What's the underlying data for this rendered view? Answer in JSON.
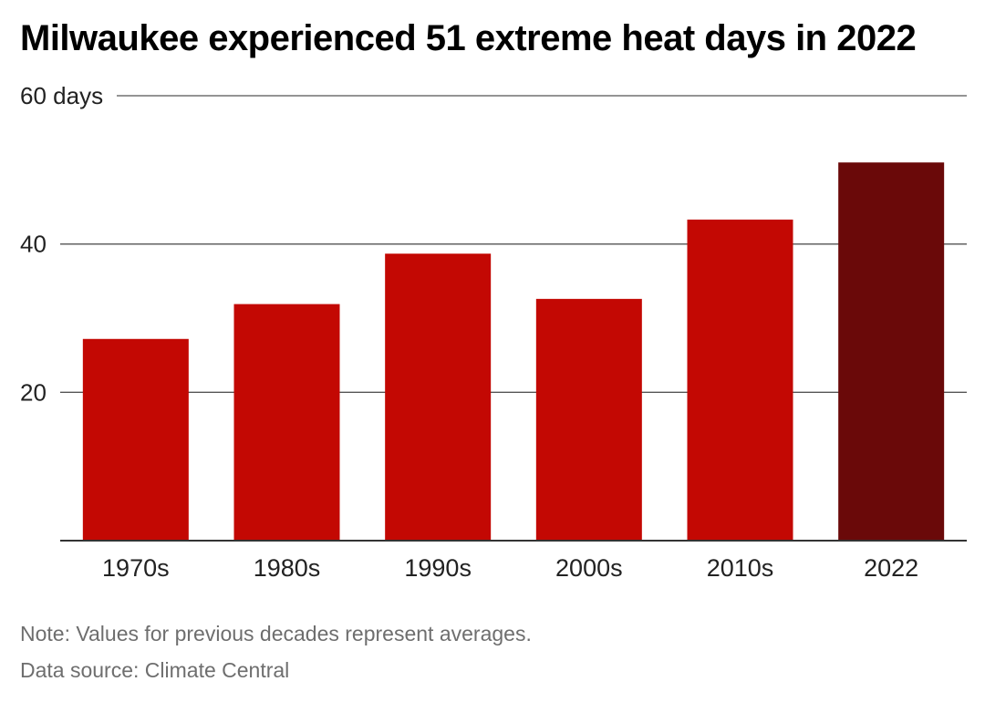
{
  "title": "Milwaukee experienced 51 extreme heat days in 2022",
  "note": "Note: Values for previous decades represent averages.",
  "source": "Data source: Climate Central",
  "colors": {
    "bar": "#c30803",
    "highlight": "#6a0909",
    "grid": "#555555",
    "axis": "#333333"
  },
  "chart_data": {
    "type": "bar",
    "categories": [
      "1970s",
      "1980s",
      "1990s",
      "2000s",
      "2010s",
      "2022"
    ],
    "values": [
      27.2,
      31.9,
      38.7,
      32.6,
      43.3,
      51
    ],
    "highlight_index": 5,
    "ylim": [
      0,
      60
    ],
    "yticks": [
      {
        "value": 20,
        "label": "20"
      },
      {
        "value": 40,
        "label": "40"
      },
      {
        "value": 60,
        "label": "60 days"
      }
    ],
    "grid": true,
    "legend": "none"
  }
}
